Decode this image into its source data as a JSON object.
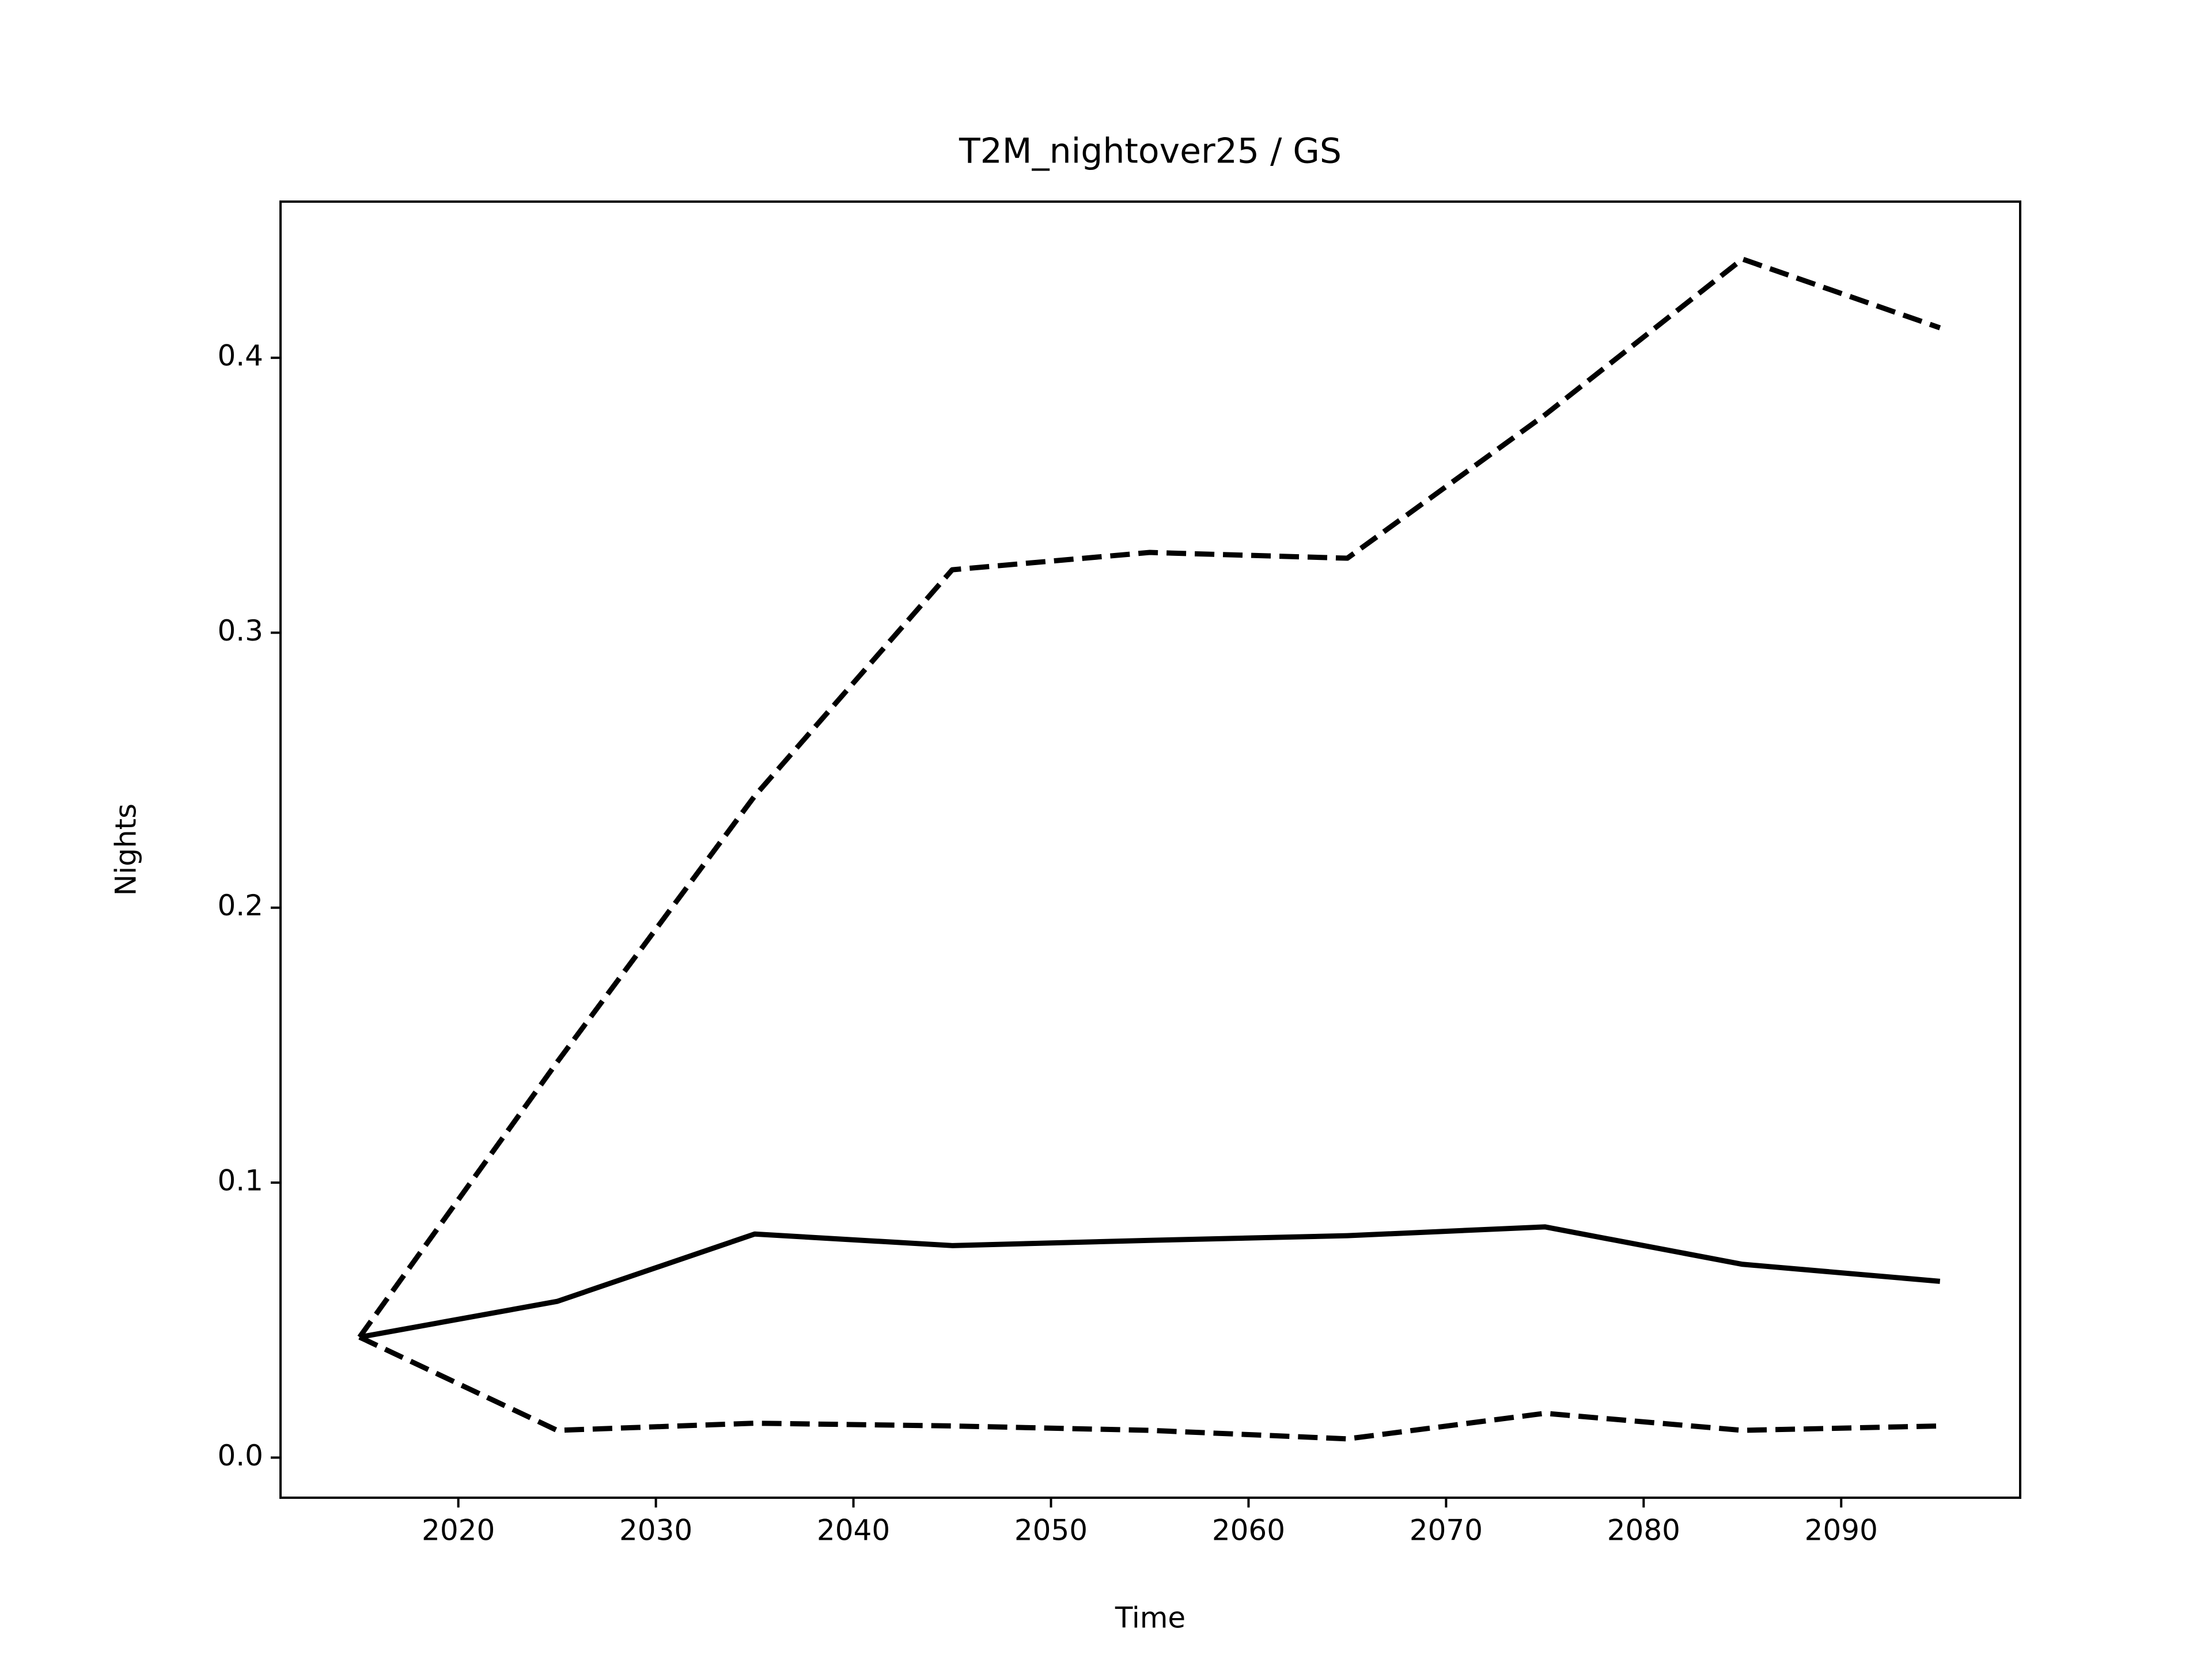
{
  "chart_data": {
    "type": "line",
    "title": "T2M_nightover25 / GS",
    "xlabel": "Time",
    "ylabel": "Nights",
    "x": [
      2015,
      2025,
      2035,
      2045,
      2055,
      2065,
      2075,
      2085,
      2095
    ],
    "series": [
      {
        "color": "#000000",
        "linestyle": "solid",
        "values": [
          0.0438,
          0.0568,
          0.0813,
          0.0771,
          0.079,
          0.0807,
          0.0839,
          0.0703,
          0.0641
        ]
      },
      {
        "color": "#000000",
        "linestyle": "dashed",
        "values": [
          0.0438,
          0.1438,
          0.2406,
          0.3229,
          0.3292,
          0.3271,
          0.3792,
          0.4359,
          0.4109
        ]
      },
      {
        "color": "#000000",
        "linestyle": "dashed",
        "values": [
          0.0438,
          0.0099,
          0.0125,
          0.0115,
          0.0099,
          0.0068,
          0.0161,
          0.0099,
          0.0115
        ]
      }
    ],
    "xlim": [
      2011,
      2099.06
    ],
    "ylim": [
      -0.0146,
      0.4568
    ],
    "xticks": [
      2020,
      2030,
      2040,
      2050,
      2060,
      2070,
      2080,
      2090
    ],
    "yticks": [
      {
        "value": 0,
        "label": "0.0"
      },
      0.1,
      0.2,
      0.3,
      0.4
    ],
    "grid": false
  }
}
